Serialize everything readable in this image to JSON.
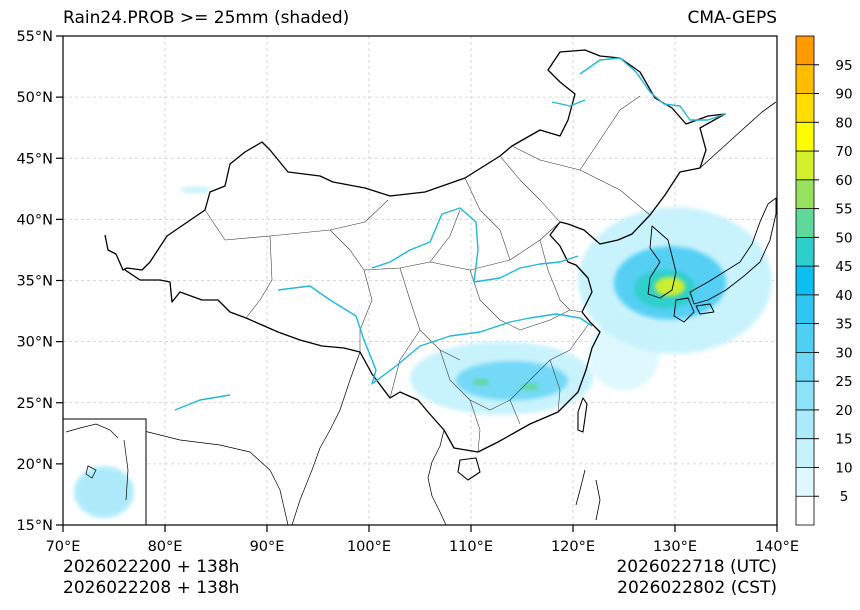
{
  "title_left": "Rain24.PROB >= 25mm (shaded)",
  "title_right": "CMA-GEPS",
  "footer": {
    "left_line1": "2026022200 + 138h",
    "left_line2": "2026022208 + 138h",
    "right_line1": "2026022718 (UTC)",
    "right_line2": "2026022802 (CST)"
  },
  "map": {
    "lon_range": [
      70,
      140
    ],
    "lat_range": [
      15,
      55
    ],
    "lon_ticks": [
      70,
      80,
      90,
      100,
      110,
      120,
      130,
      140
    ],
    "lat_ticks": [
      15,
      20,
      25,
      30,
      35,
      40,
      45,
      50,
      55
    ],
    "lon_labels": [
      "70°E",
      "80°E",
      "90°E",
      "100°E",
      "110°E",
      "120°E",
      "130°E",
      "140°E"
    ],
    "lat_labels": [
      "15°N",
      "20°N",
      "25°N",
      "30°N",
      "35°N",
      "40°N",
      "45°N",
      "50°N",
      "55°N"
    ],
    "colors": {
      "border": "#000000",
      "river": "#1fb8dc",
      "grid": "#cccccc",
      "province": "#333333"
    }
  },
  "colorbar": {
    "levels": [
      0,
      5,
      10,
      15,
      20,
      25,
      30,
      35,
      40,
      45,
      50,
      55,
      60,
      70,
      80,
      90,
      95,
      100
    ],
    "labels": [
      "5",
      "10",
      "15",
      "20",
      "25",
      "30",
      "35",
      "40",
      "45",
      "50",
      "55",
      "60",
      "70",
      "80",
      "90",
      "95"
    ],
    "colors": [
      "#ffffff",
      "#def8fe",
      "#c6f2fc",
      "#aaeafa",
      "#8ee2f8",
      "#6fd8f6",
      "#50cff4",
      "#2fc6f2",
      "#0fbef0",
      "#2ecfcb",
      "#5fd89c",
      "#96e25d",
      "#d3f02c",
      "#fffc00",
      "#ffdd00",
      "#ffbd00",
      "#ff9a00"
    ]
  },
  "prob_areas": [
    {
      "name": "korea-japan-core",
      "lon": 129.5,
      "lat": 34.5,
      "rx": 1.5,
      "ry": 0.8,
      "level": 12
    },
    {
      "name": "korea-japan-high",
      "lon": 129.0,
      "lat": 34.3,
      "rx": 3.0,
      "ry": 1.6,
      "level": 9
    },
    {
      "name": "korea-japan-mid",
      "lon": 129.5,
      "lat": 34.8,
      "rx": 5.5,
      "ry": 3.0,
      "level": 6
    },
    {
      "name": "korea-japan-low",
      "lon": 130.0,
      "lat": 35.0,
      "rx": 9.5,
      "ry": 6.0,
      "level": 2
    },
    {
      "name": "south-china-mid",
      "lon": 114.0,
      "lat": 26.8,
      "rx": 5.5,
      "ry": 1.6,
      "level": 5
    },
    {
      "name": "south-china-low",
      "lon": 113.0,
      "lat": 27.0,
      "rx": 9.0,
      "ry": 3.0,
      "level": 2
    },
    {
      "name": "south-china-core",
      "lon": 111.0,
      "lat": 26.7,
      "rx": 0.8,
      "ry": 0.3,
      "level": 10
    },
    {
      "name": "south-china-core2",
      "lon": 115.8,
      "lat": 26.3,
      "rx": 0.9,
      "ry": 0.3,
      "level": 10
    },
    {
      "name": "east-sea-low",
      "lon": 125.0,
      "lat": 29.0,
      "rx": 3.5,
      "ry": 3.0,
      "level": 1
    },
    {
      "name": "tarim-trace",
      "lon": 83.0,
      "lat": 42.4,
      "rx": 1.5,
      "ry": 0.3,
      "level": 2
    },
    {
      "name": "inset-spot",
      "lon": 74.8,
      "lat": 17.5,
      "rx": 2.5,
      "ry": 2.2,
      "level": 3
    }
  ]
}
